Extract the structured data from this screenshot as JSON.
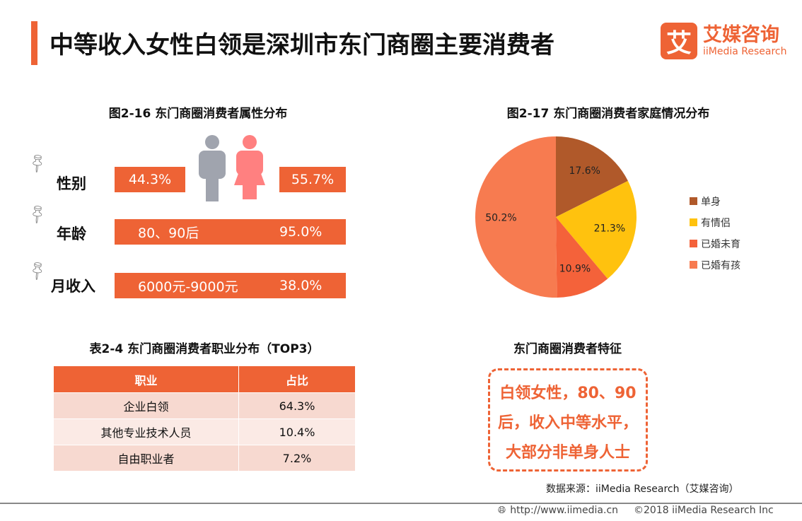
{
  "title": "中等收入女性白领是深圳市东门商圈主要消费者",
  "logo": {
    "name": "艾媒咨询",
    "sub": "iiMedia Research",
    "glyph": "艾"
  },
  "fig16": {
    "title": "图2-16 东门商圈消费者属性分布",
    "gender": {
      "label": "性别",
      "male": "44.3%",
      "female": "55.7%"
    },
    "age": {
      "label": "年龄",
      "value": "80、90后",
      "pct": "95.0%"
    },
    "income": {
      "label": "月收入",
      "value": "6000元-9000元",
      "pct": "38.0%"
    }
  },
  "fig17": {
    "title": "图2-17 东门商圈消费者家庭情况分布"
  },
  "chart_data": {
    "type": "pie",
    "title": "图2-17 东门商圈消费者家庭情况分布",
    "legend": "right",
    "categories": [
      "单身",
      "有情侣",
      "已婚未育",
      "已婚有孩"
    ],
    "values": [
      17.6,
      21.3,
      10.9,
      50.2
    ],
    "labels": [
      "17.6%",
      "21.3%",
      "10.9%",
      "50.2%"
    ],
    "colors": [
      "#B0592A",
      "#FFC20E",
      "#F4623A",
      "#F77B50"
    ]
  },
  "table": {
    "title": "表2-4 东门商圈消费者职业分布（TOP3）",
    "headers": [
      "职业",
      "占比"
    ],
    "rows": [
      [
        "企业白领",
        "64.3%"
      ],
      [
        "其他专业技术人员",
        "10.4%"
      ],
      [
        "自由职业者",
        "7.2%"
      ]
    ]
  },
  "feature": {
    "title": "东门商圈消费者特征",
    "lines": [
      "白领女性，80、90",
      "后，收入中等水平，",
      "大部分非单身人士"
    ]
  },
  "source": "数据来源：iiMedia Research（艾媒咨询）",
  "footer": {
    "url": "http://www.iimedia.cn",
    "copyright": "©2018  iiMedia Research  Inc"
  }
}
